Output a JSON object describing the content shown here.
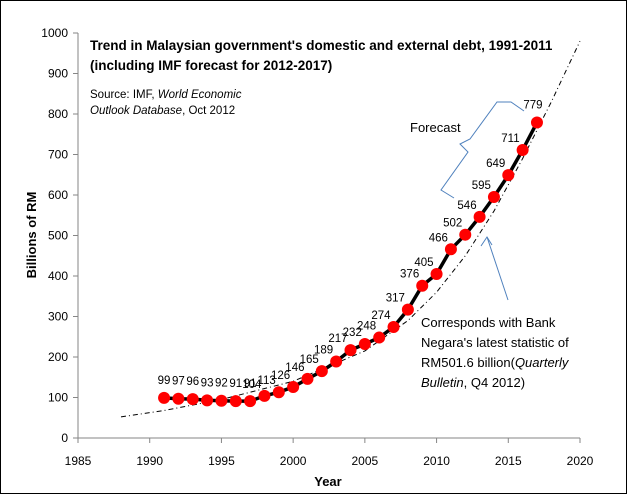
{
  "chart_data": {
    "type": "line",
    "title_lines": [
      "Trend in Malaysian government's domestic and external debt, 1991-2011",
      "(including IMF forecast for 2012-2017)"
    ],
    "source_note": {
      "prefix": "Source: IMF, ",
      "italic": "World Economic",
      "line2_italic": "Outlook Database",
      "line2_suffix": ", Oct 2012"
    },
    "xlabel": "Year",
    "ylabel": "Billions of RM",
    "xlim": [
      1985,
      2020
    ],
    "ylim": [
      0,
      1000
    ],
    "x_ticks": [
      1985,
      1990,
      1995,
      2000,
      2005,
      2010,
      2015,
      2020
    ],
    "y_ticks": [
      0,
      100,
      200,
      300,
      400,
      500,
      600,
      700,
      800,
      900,
      1000
    ],
    "grid": false,
    "legend": "none",
    "series": [
      {
        "name": "Government debt",
        "color": "#ff0000",
        "line_color": "#000000",
        "x": [
          1991,
          1992,
          1993,
          1994,
          1995,
          1996,
          1997,
          1998,
          1999,
          2000,
          2001,
          2002,
          2003,
          2004,
          2005,
          2006,
          2007,
          2008,
          2009,
          2010,
          2011,
          2012,
          2013,
          2014,
          2015,
          2016,
          2017
        ],
        "values": [
          99,
          97,
          96,
          93,
          92,
          91,
          91,
          104,
          113,
          126,
          146,
          165,
          189,
          217,
          232,
          248,
          274,
          317,
          376,
          405,
          466,
          502,
          546,
          595,
          649,
          711,
          779
        ]
      },
      {
        "name": "Exponential trendline",
        "style": "dash-dot",
        "color": "#000000",
        "x": [
          1988,
          1991,
          1995,
          2000,
          2005,
          2008,
          2010,
          2012,
          2014,
          2016,
          2018,
          2020
        ],
        "values": [
          52,
          68,
          95,
          140,
          215,
          290,
          360,
          450,
          560,
          690,
          830,
          980
        ]
      }
    ],
    "annotations": {
      "forecast_label": "Forecast",
      "bank_negara_note": [
        "Corresponds with Bank",
        "Negara's latest statistic of",
        "RM501.6 billion(",
        "Quarterly",
        "Bulletin",
        ", Q4 2012)"
      ],
      "annotation_color": "#4f81bd"
    }
  }
}
